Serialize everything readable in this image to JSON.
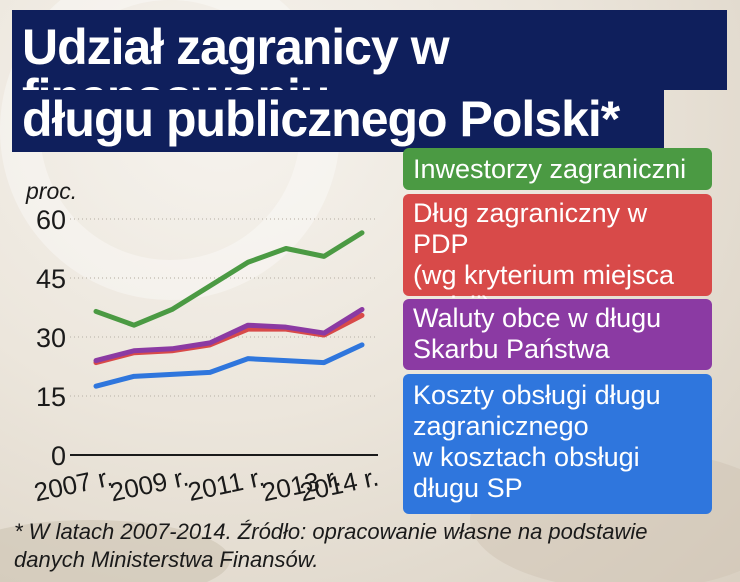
{
  "title": {
    "line1": "Udział zagranicy w finansowaniu",
    "line2": "długu publicznego Polski*"
  },
  "footnote": {
    "line1": "* W latach 2007-2014. Źródło: opracowanie własne na podstawie",
    "line2": "danych Ministerstwa Finansów."
  },
  "chart_data": {
    "type": "line",
    "ylabel": "proc.",
    "ylim": [
      0,
      60
    ],
    "yticks": [
      "0",
      "15",
      "30",
      "45",
      "60"
    ],
    "xticks": [
      "2007 r.",
      "2009 r.",
      "2011 r.",
      "2013 r.",
      "2014 r."
    ],
    "x": [
      2007,
      2008,
      2009,
      2010,
      2011,
      2012,
      2013,
      2014
    ],
    "grid": "horizontal",
    "legend": "right",
    "series": [
      {
        "name": "Inwestorzy zagraniczni",
        "color": "#4b9a43",
        "values": [
          36.5,
          33.0,
          37.0,
          43.0,
          49.0,
          52.5,
          50.5,
          56.5
        ]
      },
      {
        "name": "Dług zagraniczny w PDP (wg kryterium miejsca emisji)",
        "color": "#d84a49",
        "values": [
          23.5,
          26.0,
          26.5,
          28.0,
          32.0,
          32.0,
          30.5,
          35.5
        ]
      },
      {
        "name": "Waluty obce w długu Skarbu Państwa",
        "color": "#8b3aa3",
        "values": [
          24.0,
          26.5,
          27.0,
          28.5,
          33.0,
          32.5,
          31.0,
          37.0
        ]
      },
      {
        "name": "Koszty obsługi długu zagranicznego w kosztach obsługi długu SP",
        "color": "#2f76dd",
        "values": [
          17.5,
          20.0,
          20.5,
          21.0,
          24.5,
          24.0,
          23.5,
          28.0
        ]
      }
    ]
  },
  "legend": {
    "item0": [
      "Inwestorzy zagraniczni"
    ],
    "item1": [
      "Dług zagraniczny w PDP",
      "(wg kryterium miejsca",
      "emisji)"
    ],
    "item2": [
      "Waluty obce w długu",
      "Skarbu Państwa"
    ],
    "item3": [
      "Koszty obsługi długu",
      "zagranicznego",
      "w kosztach obsługi",
      "długu SP"
    ]
  }
}
